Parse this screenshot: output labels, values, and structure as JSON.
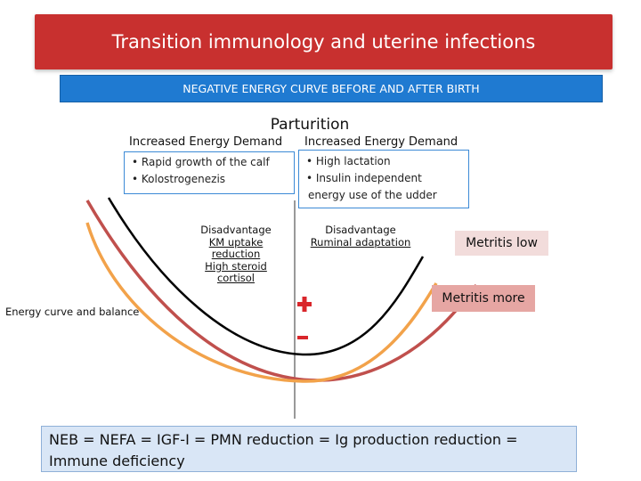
{
  "title": "Transition immunology and uterine infections",
  "subtitle": "NEGATIVE ENERGY CURVE BEFORE AND AFTER BIRTH",
  "parturition": "Parturition",
  "left": {
    "heading": "Increased Energy Demand",
    "bullets": [
      "• Rapid growth of the calf",
      "• Kolostrogenezis"
    ],
    "disadvantage": [
      "Disadvantage",
      "KM uptake",
      "reduction",
      "High steroid",
      "cortisol"
    ]
  },
  "right": {
    "heading": "Increased Energy Demand",
    "bullets": [
      "• High lactation",
      "• Insulin independent",
      "energy use of the udder"
    ],
    "disadvantage": [
      "Disadvantage",
      "Ruminal adaptation"
    ]
  },
  "metritis_low": "Metritis low",
  "metritis_more": "Metritis more",
  "energy_label": "Energy curve and balance",
  "plus": "+",
  "minus": "-",
  "footer_line1": "NEB = NEFA = IGF-I = PMN reduction = Ig production reduction =",
  "footer_line2": "Immune deficiency",
  "colors": {
    "title_bg": "#c8302f",
    "subtitle_bg": "#1f7ad1",
    "curve_black": "#000000",
    "curve_orange": "#f2a24a",
    "curve_darkred": "#c0504d",
    "metritis_low_bg": "#f2dcdb",
    "metritis_more_bg": "#e6a6a3"
  }
}
